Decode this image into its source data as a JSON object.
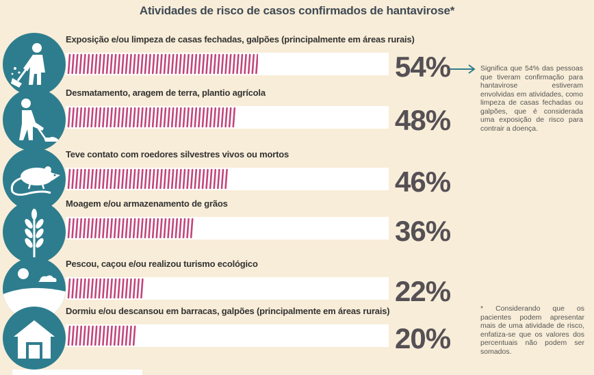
{
  "title": "Atividades de risco de casos confirmados de hantavirose*",
  "colors": {
    "circle": "#2e7d8e",
    "stripe": "#c2457c",
    "bar_bg": "#ffffff",
    "background": "#f8edd8"
  },
  "chart_data": {
    "type": "bar",
    "orientation": "horizontal",
    "title": "Atividades de risco de casos confirmados de hantavirose*",
    "categories": [
      "Exposição e/ou limpeza de casas fechadas, galpões (principalmente em áreas rurais)",
      "Desmatamento, aragem de terra, plantio agrícola",
      "Teve contato com roedores silvestres vivos ou mortos",
      "Moagem e/ou armazenamento de grãos",
      "Pescou, caçou e/ou realizou turismo ecológico",
      "Dormiu e/ou descansou em barracas, galpões (principalmente em áreas rurais)"
    ],
    "values": [
      54,
      48,
      46,
      36,
      22,
      20
    ],
    "value_labels": [
      "54%",
      "48%",
      "46%",
      "36%",
      "22%",
      "20%"
    ],
    "icons": [
      "cleaning-person-icon",
      "farmer-hoe-icon",
      "rodent-icon",
      "wheat-icon",
      "landscape-icon",
      "barn-icon"
    ],
    "xlim": [
      0,
      100
    ]
  },
  "notes": {
    "arrow_note": "Significa que 54% das pessoas que tiveram confirmação para hantavirose estiveram envolvidas em atividades, como limpeza de casas fechadas ou galpões, que é considerada uma exposição de risco para contrair a doença.",
    "footnote_marker": "*",
    "footnote": "Considerando que os pacientes podem apresentar mais de uma atividade de risco, enfatiza-se que os valores dos percentuais não podem ser somados."
  }
}
